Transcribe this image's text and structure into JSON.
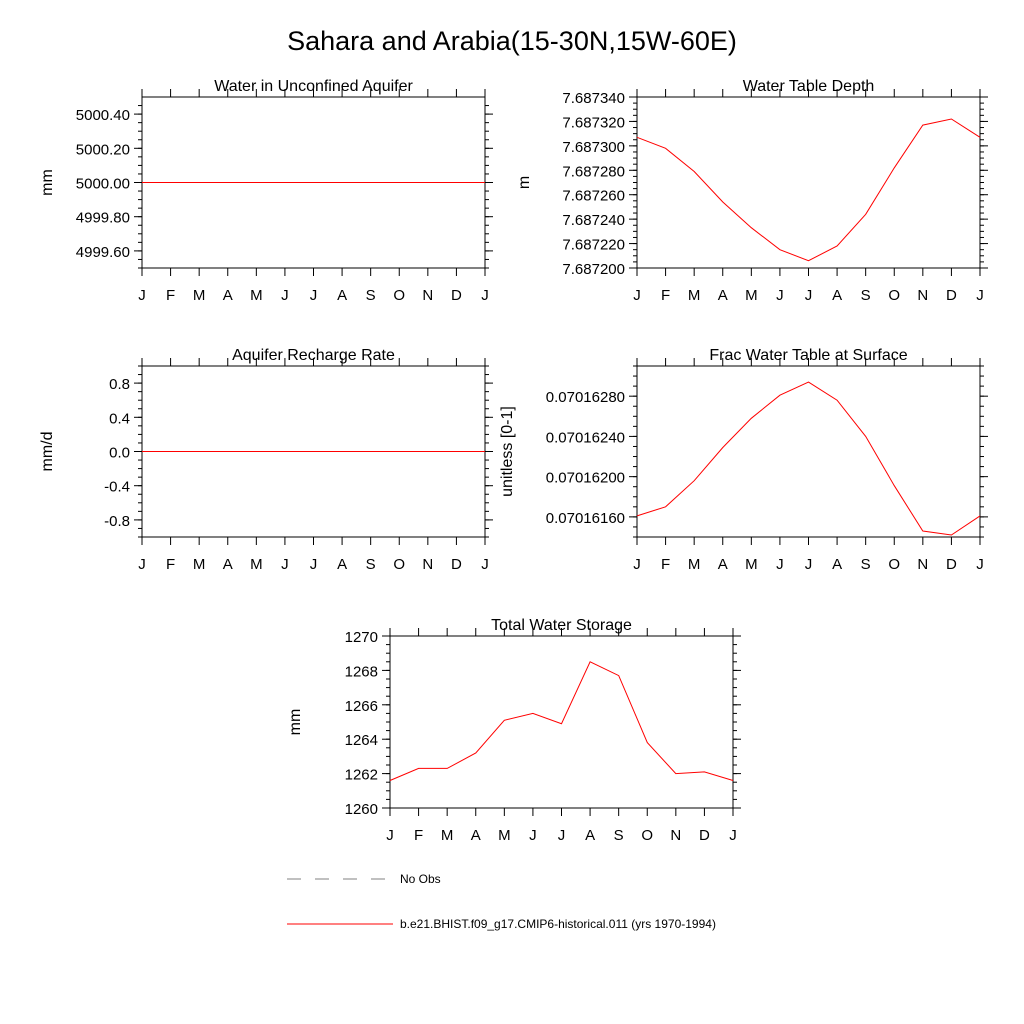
{
  "figure": {
    "title": "Sahara and Arabia(15-30N,15W-60E)"
  },
  "colors": {
    "model_line": "#ff0000",
    "obs_line": "#808080",
    "axis": "#000000"
  },
  "legend": {
    "obs_label": "No Obs",
    "model_label": "b.e21.BHIST.f09_g17.CMIP6-historical.011 (yrs 1970-1994)"
  },
  "chart_data": [
    {
      "type": "line",
      "title": "Water in Unconfined Aquifer",
      "ylabel": "mm",
      "categories": [
        "J",
        "F",
        "M",
        "A",
        "M",
        "J",
        "J",
        "A",
        "S",
        "O",
        "N",
        "D",
        "J"
      ],
      "ylim": [
        4999.5,
        5000.5
      ],
      "yticks": [
        4999.6,
        4999.8,
        5000.0,
        5000.2,
        5000.4
      ],
      "ytick_labels": [
        "4999.60",
        "4999.80",
        "5000.00",
        "5000.20",
        "5000.40"
      ],
      "values": [
        5000.0,
        5000.0,
        5000.0,
        5000.0,
        5000.0,
        5000.0,
        5000.0,
        5000.0,
        5000.0,
        5000.0,
        5000.0,
        5000.0,
        5000.0
      ]
    },
    {
      "type": "line",
      "title": "Water Table Depth",
      "ylabel": "m",
      "categories": [
        "J",
        "F",
        "M",
        "A",
        "M",
        "J",
        "J",
        "A",
        "S",
        "O",
        "N",
        "D",
        "J"
      ],
      "ylim": [
        7.6872,
        7.68734
      ],
      "yticks": [
        7.6872,
        7.68722,
        7.68724,
        7.68726,
        7.68728,
        7.6873,
        7.68732,
        7.68734
      ],
      "ytick_labels": [
        "7.687200",
        "7.687220",
        "7.687240",
        "7.687260",
        "7.687280",
        "7.687300",
        "7.687320",
        "7.687340"
      ],
      "values": [
        7.687307,
        7.687298,
        7.687279,
        7.687254,
        7.687233,
        7.687215,
        7.687206,
        7.687218,
        7.687244,
        7.687282,
        7.687317,
        7.687322,
        7.687307
      ]
    },
    {
      "type": "line",
      "title": "Aquifer Recharge Rate",
      "ylabel": "mm/d",
      "categories": [
        "J",
        "F",
        "M",
        "A",
        "M",
        "J",
        "J",
        "A",
        "S",
        "O",
        "N",
        "D",
        "J"
      ],
      "ylim": [
        -1.0,
        1.0
      ],
      "yticks": [
        -0.8,
        -0.4,
        0.0,
        0.4,
        0.8
      ],
      "ytick_labels": [
        "-0.8",
        "-0.4",
        "0.0",
        "0.4",
        "0.8"
      ],
      "values": [
        0,
        0,
        0,
        0,
        0,
        0,
        0,
        0,
        0,
        0,
        0,
        0,
        0
      ]
    },
    {
      "type": "line",
      "title": "Frac Water Table at Surface",
      "ylabel": "unitless [0-1]",
      "categories": [
        "J",
        "F",
        "M",
        "A",
        "M",
        "J",
        "J",
        "A",
        "S",
        "O",
        "N",
        "D",
        "J"
      ],
      "ylim": [
        0.0701614,
        0.0701631
      ],
      "yticks": [
        0.0701616,
        0.070162,
        0.0701624,
        0.0701628
      ],
      "ytick_labels": [
        "0.07016160",
        "0.07016200",
        "0.07016240",
        "0.07016280"
      ],
      "values": [
        0.07016161,
        0.0701617,
        0.07016196,
        0.07016229,
        0.07016258,
        0.07016281,
        0.07016294,
        0.07016276,
        0.0701624,
        0.07016191,
        0.07016146,
        0.07016142,
        0.07016161
      ]
    },
    {
      "type": "line",
      "title": "Total Water Storage",
      "ylabel": "mm",
      "categories": [
        "J",
        "F",
        "M",
        "A",
        "M",
        "J",
        "J",
        "A",
        "S",
        "O",
        "N",
        "D",
        "J"
      ],
      "ylim": [
        1260,
        1270
      ],
      "yticks": [
        1260,
        1262,
        1264,
        1266,
        1268,
        1270
      ],
      "ytick_labels": [
        "1260",
        "1262",
        "1264",
        "1266",
        "1268",
        "1270"
      ],
      "values": [
        1261.6,
        1262.3,
        1262.3,
        1263.2,
        1265.1,
        1265.5,
        1264.9,
        1268.5,
        1267.7,
        1263.8,
        1262.0,
        1262.1,
        1261.6
      ]
    }
  ]
}
